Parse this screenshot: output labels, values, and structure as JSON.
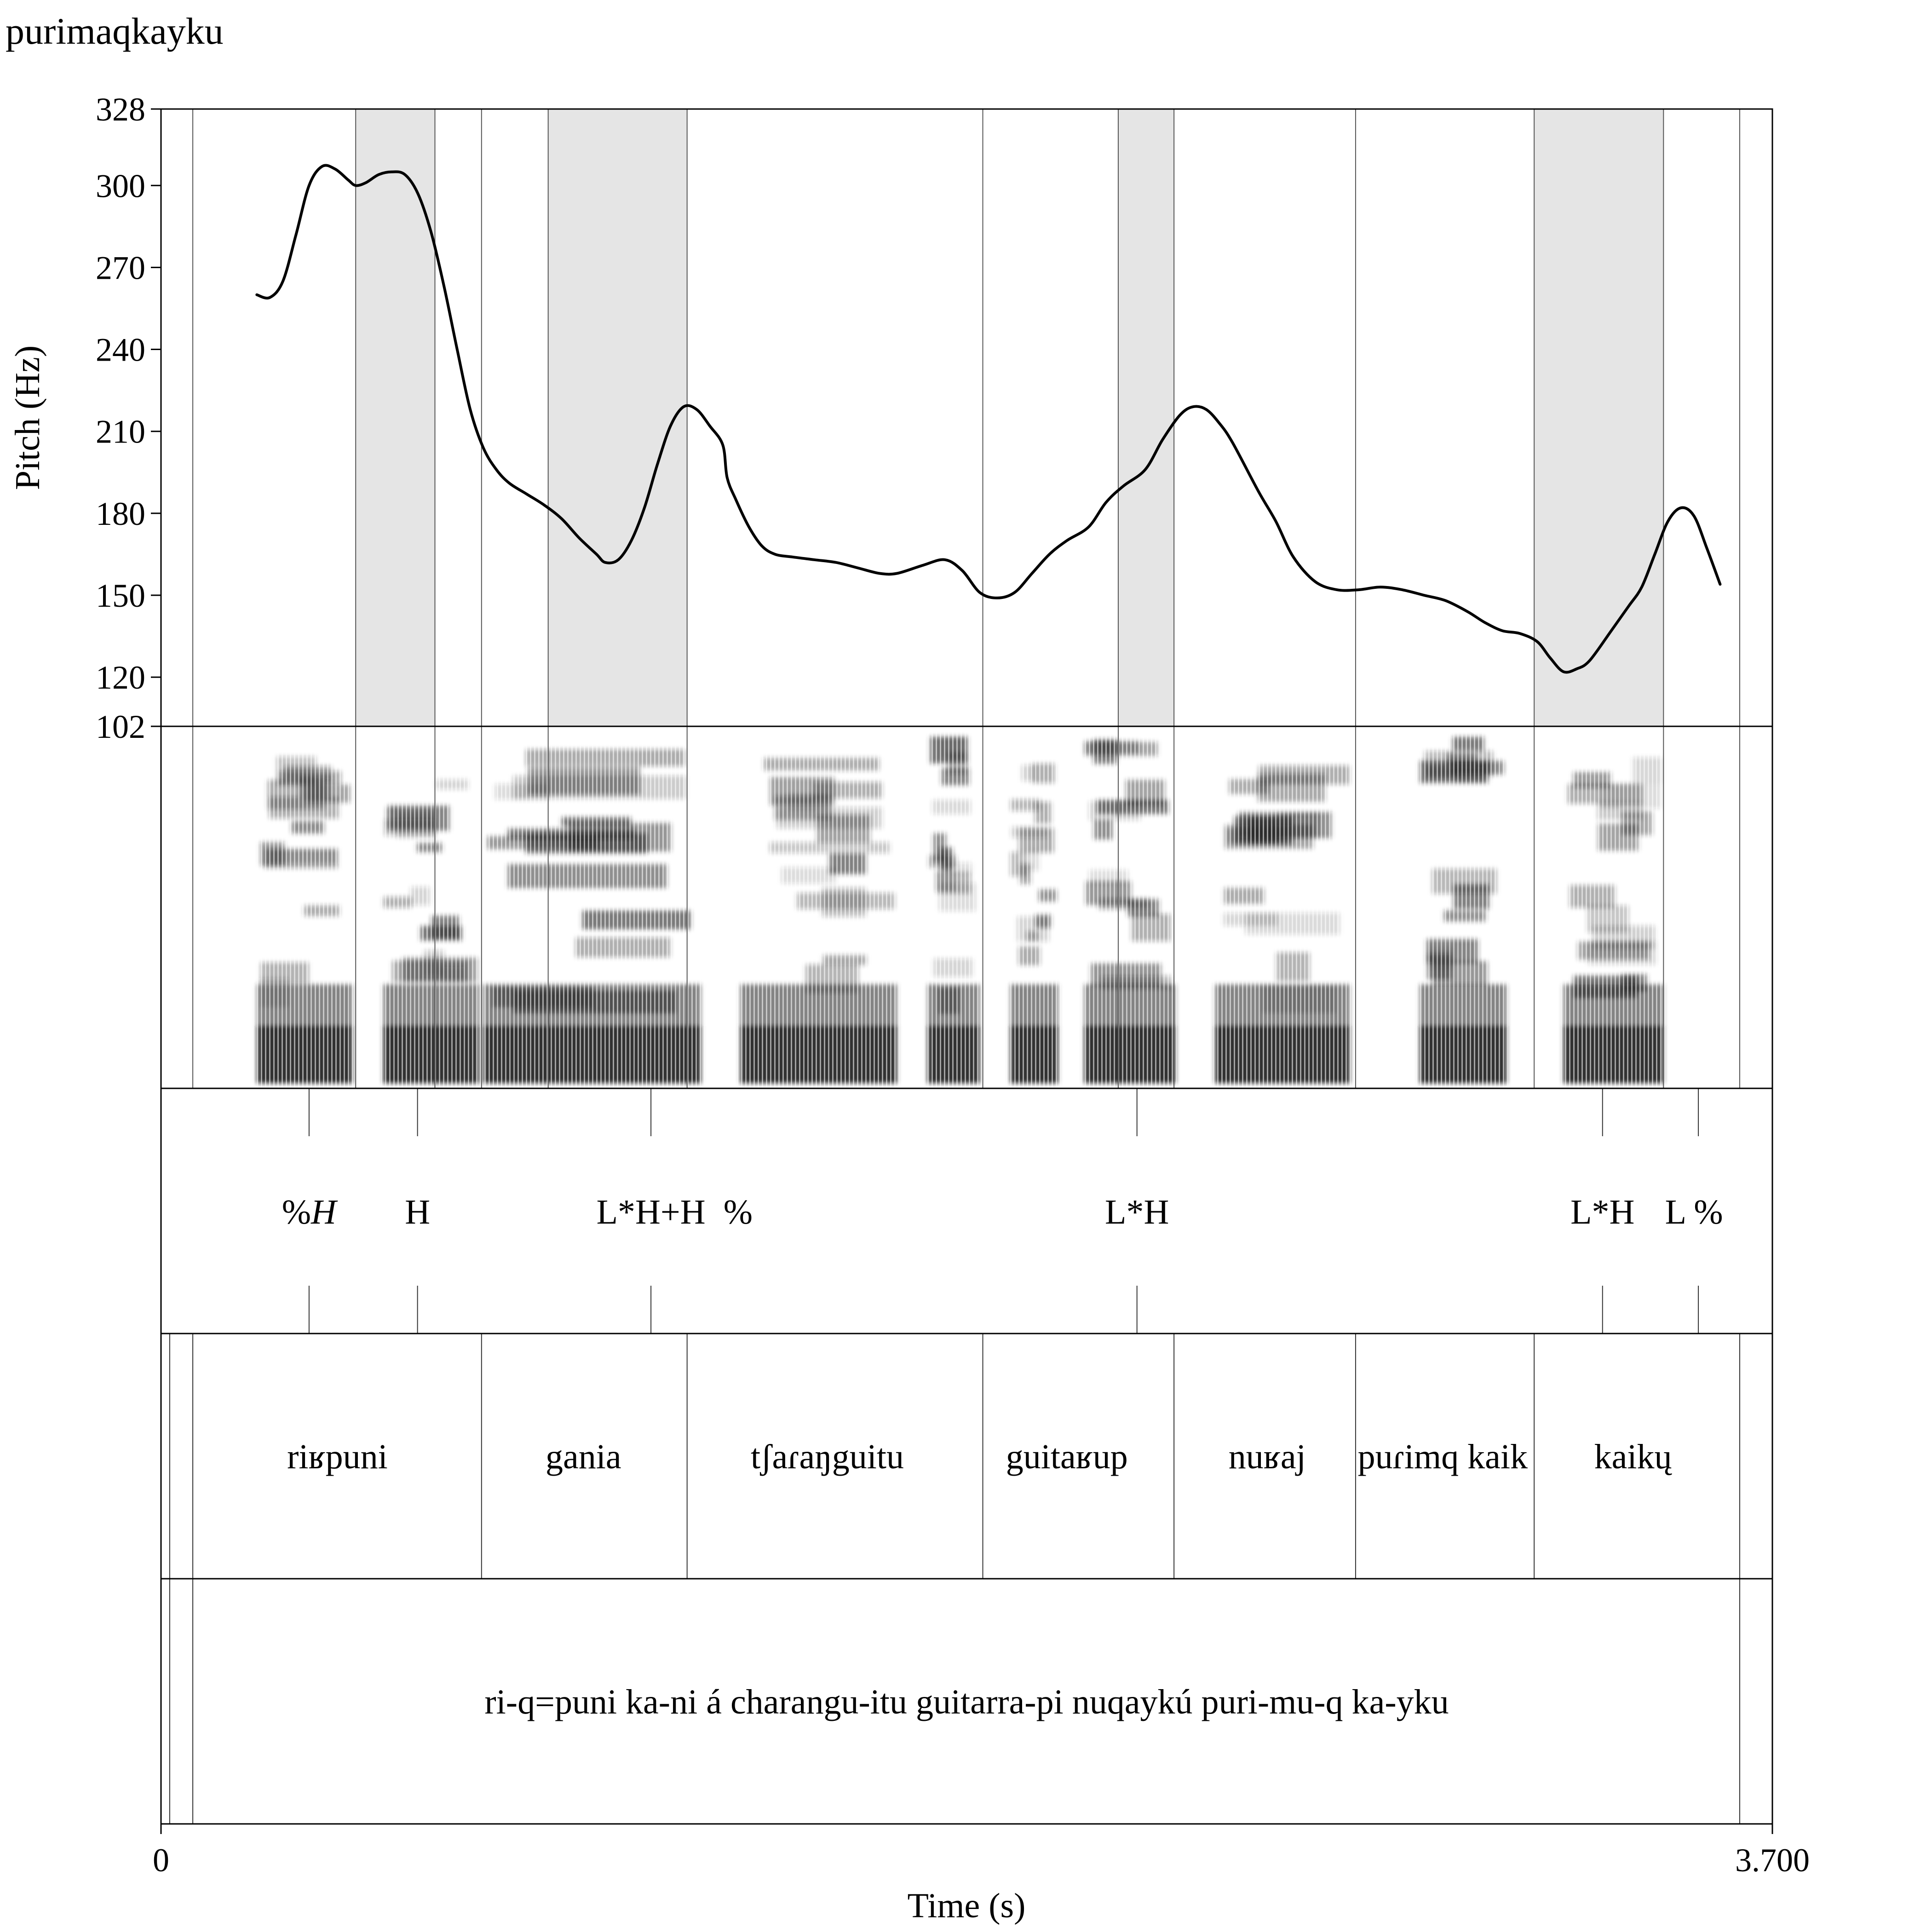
{
  "chart_data": {
    "type": "line",
    "title": "purimaqkayku",
    "ylabel": "Pitch (Hz)",
    "xlabel": "Time (s)",
    "xlim": [
      0,
      3.7
    ],
    "x_tick_labels": [
      "0",
      "3.700"
    ],
    "ylim": [
      102,
      328
    ],
    "y_tick_labels": [
      "102",
      "120",
      "150",
      "180",
      "210",
      "240",
      "270",
      "300",
      "328"
    ],
    "y_ticks": [
      102,
      120,
      150,
      180,
      210,
      240,
      270,
      300,
      328
    ],
    "grid": false,
    "shaded_intervals": [
      [
        0.447,
        0.629
      ],
      [
        0.889,
        1.208
      ],
      [
        2.198,
        2.326
      ],
      [
        3.153,
        3.45
      ]
    ],
    "boundaries": [
      0.073,
      0.447,
      0.629,
      0.736,
      0.889,
      1.208,
      1.887,
      2.198,
      2.326,
      2.743,
      3.153,
      3.45,
      3.625
    ],
    "series": [
      {
        "values": [
          [
            0.22,
            260
          ],
          [
            0.25,
            259
          ],
          [
            0.28,
            265
          ],
          [
            0.31,
            282
          ],
          [
            0.34,
            300
          ],
          [
            0.37,
            307
          ],
          [
            0.4,
            306
          ],
          [
            0.43,
            302
          ],
          [
            0.447,
            300
          ],
          [
            0.47,
            301
          ],
          [
            0.5,
            304
          ],
          [
            0.53,
            305
          ],
          [
            0.56,
            304
          ],
          [
            0.59,
            297
          ],
          [
            0.62,
            283
          ],
          [
            0.65,
            263
          ],
          [
            0.68,
            240
          ],
          [
            0.71,
            218
          ],
          [
            0.74,
            204
          ],
          [
            0.77,
            196
          ],
          [
            0.8,
            191
          ],
          [
            0.84,
            187
          ],
          [
            0.88,
            183
          ],
          [
            0.92,
            178
          ],
          [
            0.96,
            171
          ],
          [
            1.0,
            165
          ],
          [
            1.02,
            162
          ],
          [
            1.05,
            163
          ],
          [
            1.08,
            170
          ],
          [
            1.11,
            182
          ],
          [
            1.14,
            198
          ],
          [
            1.17,
            212
          ],
          [
            1.2,
            219
          ],
          [
            1.23,
            218
          ],
          [
            1.26,
            212
          ],
          [
            1.29,
            205
          ],
          [
            1.3,
            193
          ],
          [
            1.32,
            185
          ],
          [
            1.35,
            175
          ],
          [
            1.38,
            168
          ],
          [
            1.41,
            165
          ],
          [
            1.45,
            164
          ],
          [
            1.5,
            163
          ],
          [
            1.55,
            162
          ],
          [
            1.6,
            160
          ],
          [
            1.65,
            158
          ],
          [
            1.69,
            158
          ],
          [
            1.75,
            161
          ],
          [
            1.8,
            163
          ],
          [
            1.84,
            159
          ],
          [
            1.88,
            151
          ],
          [
            1.92,
            149
          ],
          [
            1.96,
            151
          ],
          [
            2.0,
            158
          ],
          [
            2.04,
            165
          ],
          [
            2.08,
            170
          ],
          [
            2.13,
            175
          ],
          [
            2.17,
            184
          ],
          [
            2.21,
            190
          ],
          [
            2.26,
            196
          ],
          [
            2.3,
            207
          ],
          [
            2.34,
            216
          ],
          [
            2.37,
            219
          ],
          [
            2.4,
            218
          ],
          [
            2.43,
            213
          ],
          [
            2.46,
            206
          ],
          [
            2.52,
            188
          ],
          [
            2.56,
            177
          ],
          [
            2.6,
            164
          ],
          [
            2.65,
            155
          ],
          [
            2.7,
            152
          ],
          [
            2.75,
            152
          ],
          [
            2.8,
            153
          ],
          [
            2.85,
            152
          ],
          [
            2.9,
            150
          ],
          [
            2.95,
            148
          ],
          [
            3.0,
            144
          ],
          [
            3.04,
            140
          ],
          [
            3.08,
            137
          ],
          [
            3.12,
            136
          ],
          [
            3.16,
            133
          ],
          [
            3.19,
            127
          ],
          [
            3.22,
            122
          ],
          [
            3.25,
            123
          ],
          [
            3.28,
            126
          ],
          [
            3.33,
            137
          ],
          [
            3.37,
            146
          ],
          [
            3.4,
            153
          ],
          [
            3.43,
            165
          ],
          [
            3.46,
            177
          ],
          [
            3.49,
            182
          ],
          [
            3.52,
            179
          ],
          [
            3.55,
            167
          ],
          [
            3.58,
            154
          ]
        ]
      }
    ]
  },
  "tiers": {
    "tones": {
      "labels": [
        {
          "text": "%",
          "italic_suffix": "H",
          "t": 0.34
        },
        {
          "text": "H",
          "t": 0.589
        },
        {
          "text": "L*H+H",
          "t": 1.125
        },
        {
          "text": "%",
          "t": 1.325
        },
        {
          "text": "L*H",
          "t": 2.241
        },
        {
          "text": "L*H",
          "t": 3.31
        },
        {
          "text": "L %",
          "t": 3.52
        }
      ],
      "ticks": [
        0.34,
        0.589,
        1.125,
        2.241,
        3.31,
        3.53
      ]
    },
    "words": {
      "labels": [
        {
          "text": "riʁpuni",
          "t": 0.405
        },
        {
          "text": "gania",
          "t": 0.97
        },
        {
          "text": "tʃaɾaŋguitu",
          "t": 1.53
        },
        {
          "text": "guitaʁup",
          "t": 2.08
        },
        {
          "text": "nuʁaj",
          "t": 2.54
        },
        {
          "text": "puɾimq kaik",
          "t": 2.943
        },
        {
          "text": "kaikų",
          "t": 3.38
        }
      ],
      "boundaries": [
        0.02,
        0.073,
        0.736,
        1.208,
        1.887,
        2.326,
        2.743,
        3.153,
        3.625
      ]
    },
    "gloss": {
      "text": "ri-q=puni ka-ni á charangu-itu guitarra-pi nuqaykú puri-mu-q ka-yku",
      "t": 1.85,
      "boundaries": [
        0.02,
        0.073,
        3.625
      ]
    }
  },
  "colors": {
    "shade": "#e5e5e5",
    "line": "#000000",
    "boundary": "#555555"
  }
}
